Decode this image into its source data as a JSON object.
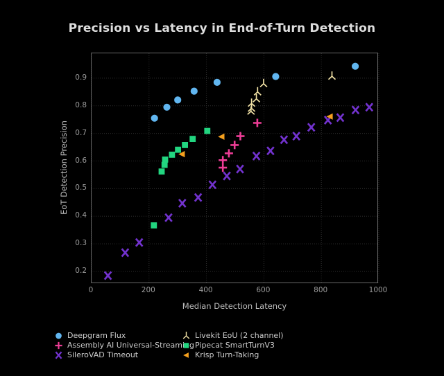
{
  "background_color": "#000000",
  "text_colors": {
    "title": "#dedede",
    "axis_label": "#bdbdbd",
    "tick_label": "#9c9c9c",
    "legend_label": "#cecece"
  },
  "grid_color": "#2e2e2e",
  "spine_color": "#6a6a6a",
  "chart_data": {
    "type": "scatter",
    "title": "Precision vs Latency in End-of-Turn Detection",
    "xlabel": "Median Detection Latency",
    "ylabel": "EoT Detection Precision",
    "xlim": [
      0,
      1000
    ],
    "ylim": [
      0.155,
      0.99
    ],
    "xticks": [
      0,
      200,
      400,
      600,
      800,
      1000
    ],
    "yticks": [
      0.2,
      0.3,
      0.4,
      0.5,
      0.6,
      0.7,
      0.8,
      0.9
    ],
    "grid": true,
    "legend_position": "bottom",
    "legend_columns": [
      [
        0,
        1,
        2
      ],
      [
        3,
        4,
        5
      ]
    ],
    "series": [
      {
        "name": "Deepgram Flux",
        "marker": "circle",
        "color": "#61b6f0",
        "points": [
          [
            219,
            0.755
          ],
          [
            262,
            0.795
          ],
          [
            300,
            0.821
          ],
          [
            357,
            0.853
          ],
          [
            437,
            0.885
          ],
          [
            641,
            0.906
          ],
          [
            918,
            0.943
          ]
        ]
      },
      {
        "name": "Assembly AI Universal-Streaming",
        "marker": "plus",
        "color": "#ed3d96",
        "points": [
          [
            457,
            0.576
          ],
          [
            457,
            0.603
          ],
          [
            478,
            0.628
          ],
          [
            498,
            0.658
          ],
          [
            518,
            0.69
          ],
          [
            577,
            0.738
          ]
        ]
      },
      {
        "name": "SileroVAD Timeout",
        "marker": "x",
        "color": "#7232ce",
        "points": [
          [
            57,
            0.185
          ],
          [
            117,
            0.268
          ],
          [
            166,
            0.305
          ],
          [
            268,
            0.395
          ],
          [
            316,
            0.447
          ],
          [
            371,
            0.468
          ],
          [
            421,
            0.514
          ],
          [
            471,
            0.546
          ],
          [
            517,
            0.571
          ],
          [
            574,
            0.618
          ],
          [
            623,
            0.637
          ],
          [
            670,
            0.677
          ],
          [
            713,
            0.69
          ],
          [
            765,
            0.722
          ],
          [
            823,
            0.748
          ],
          [
            866,
            0.757
          ],
          [
            919,
            0.785
          ],
          [
            967,
            0.795
          ]
        ]
      },
      {
        "name": "Livekit EoU (2 channel)",
        "marker": "tri-up",
        "color": "#f0e0a4",
        "points": [
          [
            555,
            0.78
          ],
          [
            557,
            0.791
          ],
          [
            557,
            0.809
          ],
          [
            574,
            0.825
          ],
          [
            578,
            0.85
          ],
          [
            599,
            0.88
          ],
          [
            837,
            0.907
          ]
        ]
      },
      {
        "name": "Pipecat SmartTurnV3",
        "marker": "square",
        "color": "#22d580",
        "points": [
          [
            217,
            0.367
          ],
          [
            244,
            0.562
          ],
          [
            254,
            0.586
          ],
          [
            256,
            0.605
          ],
          [
            280,
            0.623
          ],
          [
            301,
            0.641
          ],
          [
            325,
            0.658
          ],
          [
            352,
            0.68
          ],
          [
            403,
            0.709
          ]
        ]
      },
      {
        "name": "Krisp Turn-Taking",
        "marker": "tri-left",
        "color": "#f5a01e",
        "points": [
          [
            315,
            0.625
          ],
          [
            453,
            0.688
          ],
          [
            830,
            0.761
          ]
        ]
      }
    ]
  }
}
